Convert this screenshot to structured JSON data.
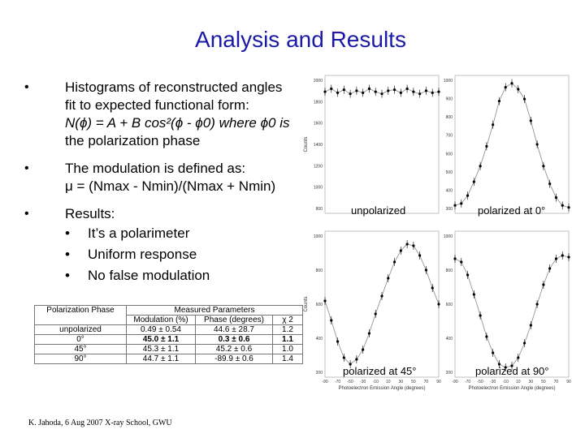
{
  "slide": {
    "title": "Analysis and Results",
    "footer": "K. Jahoda, 6 Aug 2007 X-ray School, GWU"
  },
  "bullets": {
    "b1_line1": "Histograms of reconstructed angles",
    "b1_line2": "fit to expected functional form:",
    "b1_formula": "N(ϕ) = A + B cos²(ϕ - ϕ0) where ϕ0 is",
    "b1_line4": "the polarization phase",
    "b2_line1": "The modulation is defined as:",
    "b2_formula": "μ = (Nmax - Nmin)/(Nmax + Nmin)",
    "b3_line1": "Results:",
    "sub": [
      "It’s a polarimeter",
      "Uniform response",
      "No false modulation"
    ],
    "marker": "•"
  },
  "table": {
    "headers": [
      "Polarization Phase",
      "Measured Parameters"
    ],
    "subheaders": [
      "",
      "Modulation (%)",
      "Phase (degrees)",
      "χ 2"
    ],
    "rows": [
      [
        "unpolarized",
        "0.49 ± 0.54",
        "44.6 ± 28.7",
        "1.2"
      ],
      [
        "0°",
        "45.0 ± 1.1",
        "0.3 ± 0.6",
        "1.1"
      ],
      [
        "45°",
        "45.3 ± 1.1",
        "45.2 ± 0.6",
        "1.0"
      ],
      [
        "90°",
        "44.7 ± 1.1",
        "-89.9 ± 0.6",
        "1.4"
      ]
    ]
  },
  "plots": {
    "captions": [
      "unpolarized",
      "polarized at 0°",
      "polarized at 45°",
      "polarized at 90°"
    ],
    "ylabel": "Counts",
    "xlabel": "Photoelectron Emission Angle (degrees)",
    "xticks": [
      "-90",
      "-70",
      "-50",
      "-30",
      "-10",
      "10",
      "30",
      "50",
      "70",
      "90"
    ],
    "yticks_top_left": [
      "2000",
      "1800",
      "1600",
      "1400",
      "1200",
      "1000",
      "800"
    ],
    "yticks_top_right": [
      "1000",
      "900",
      "800",
      "700",
      "600",
      "500",
      "400",
      "300"
    ],
    "yticks_bottom_left": [
      "1000",
      "800",
      "600",
      "400",
      "200"
    ],
    "yticks_bottom_right": [
      "1000",
      "800",
      "600",
      "400",
      "200"
    ]
  },
  "chart_data": [
    {
      "type": "scatter",
      "title": "unpolarized",
      "xlabel": "",
      "ylabel": "Counts",
      "xlim": [
        -90,
        90
      ],
      "ylim": [
        700,
        2050
      ],
      "x": [
        -90,
        -80,
        -70,
        -60,
        -50,
        -40,
        -30,
        -20,
        -10,
        0,
        10,
        20,
        30,
        40,
        50,
        60,
        70,
        80,
        90
      ],
      "y": [
        1890,
        1920,
        1880,
        1910,
        1870,
        1900,
        1880,
        1920,
        1890,
        1870,
        1900,
        1910,
        1880,
        1920,
        1890,
        1870,
        1900,
        1880,
        1890
      ]
    },
    {
      "type": "scatter",
      "title": "polarized at 0°",
      "xlabel": "",
      "ylabel": "",
      "xlim": [
        -90,
        90
      ],
      "ylim": [
        300,
        1000
      ],
      "x": [
        -90,
        -80,
        -70,
        -60,
        -50,
        -40,
        -30,
        -20,
        -10,
        0,
        10,
        20,
        30,
        40,
        50,
        60,
        70,
        80,
        90
      ],
      "y": [
        340,
        350,
        390,
        460,
        540,
        640,
        750,
        870,
        940,
        960,
        930,
        880,
        770,
        650,
        540,
        450,
        380,
        340,
        330
      ]
    },
    {
      "type": "scatter",
      "title": "polarized at 45°",
      "xlabel": "Photoelectron Emission Angle (degrees)",
      "ylabel": "Counts",
      "xlim": [
        -90,
        90
      ],
      "ylim": [
        150,
        1050
      ],
      "x": [
        -90,
        -80,
        -70,
        -60,
        -50,
        -40,
        -30,
        -20,
        -10,
        0,
        10,
        20,
        30,
        40,
        50,
        60,
        70,
        80,
        90
      ],
      "y": [
        620,
        500,
        370,
        270,
        230,
        260,
        320,
        420,
        540,
        650,
        760,
        860,
        930,
        970,
        960,
        900,
        810,
        700,
        600
      ]
    },
    {
      "type": "scatter",
      "title": "polarized at 90°",
      "xlabel": "Photoelectron Emission Angle (degrees)",
      "ylabel": "",
      "xlim": [
        -90,
        90
      ],
      "ylim": [
        150,
        1050
      ],
      "x": [
        -90,
        -80,
        -70,
        -60,
        -50,
        -40,
        -30,
        -20,
        -10,
        0,
        10,
        20,
        30,
        40,
        50,
        60,
        70,
        80,
        90
      ],
      "y": [
        880,
        860,
        780,
        660,
        530,
        400,
        300,
        230,
        210,
        220,
        270,
        360,
        470,
        600,
        720,
        820,
        880,
        900,
        890
      ]
    }
  ]
}
